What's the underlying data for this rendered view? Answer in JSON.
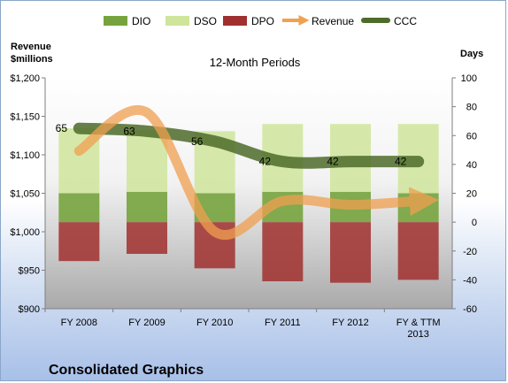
{
  "chart_data": {
    "type": "bar",
    "title": "12-Month Periods",
    "footer_title": "Consolidated Graphics",
    "categories": [
      "FY 2008",
      "FY 2009",
      "FY 2010",
      "FY 2011",
      "FY 2012",
      "FY & TTM 2013"
    ],
    "y_left": {
      "label_line1": "Revenue",
      "label_line2": "$millions",
      "min": 900,
      "max": 1200,
      "step": 50,
      "tick_labels": [
        "$900",
        "$950",
        "$1,000",
        "$1,050",
        "$1,100",
        "$1,150",
        "$1,200"
      ]
    },
    "y_right": {
      "label": "Days",
      "min": -60,
      "max": 100,
      "step": 20,
      "tick_labels": [
        "-60",
        "-40",
        "-20",
        "0",
        "20",
        "40",
        "60",
        "80",
        "100"
      ]
    },
    "legend": [
      {
        "key": "DIO",
        "label": "DIO",
        "symbol": "box",
        "color": "#77a33e"
      },
      {
        "key": "DSO",
        "label": "DSO",
        "symbol": "box",
        "color": "#cfe59b"
      },
      {
        "key": "DPO",
        "label": "DPO",
        "symbol": "box",
        "color": "#a0302f"
      },
      {
        "key": "Revenue",
        "label": "Revenue",
        "symbol": "arrow",
        "color": "#f0a050"
      },
      {
        "key": "CCC",
        "label": "CCC",
        "symbol": "line",
        "color": "#4d6b2a"
      }
    ],
    "series": [
      {
        "name": "DIO",
        "axis": "right",
        "values": [
          20,
          21,
          20,
          21,
          21,
          20
        ]
      },
      {
        "name": "DSO",
        "axis": "right",
        "values": [
          45,
          43,
          43,
          47,
          47,
          48
        ]
      },
      {
        "name": "DPO",
        "axis": "right",
        "values": [
          -27,
          -22,
          -32,
          -41,
          -42,
          -40
        ]
      },
      {
        "name": "Revenue",
        "axis": "left",
        "values": [
          1105,
          1155,
          1000,
          1040,
          1035,
          1040
        ]
      },
      {
        "name": "CCC",
        "axis": "right",
        "values": [
          65,
          63,
          56,
          42,
          42,
          42
        ]
      }
    ],
    "ccc_labels": [
      "65",
      "63",
      "56",
      "42",
      "42",
      "42"
    ]
  }
}
